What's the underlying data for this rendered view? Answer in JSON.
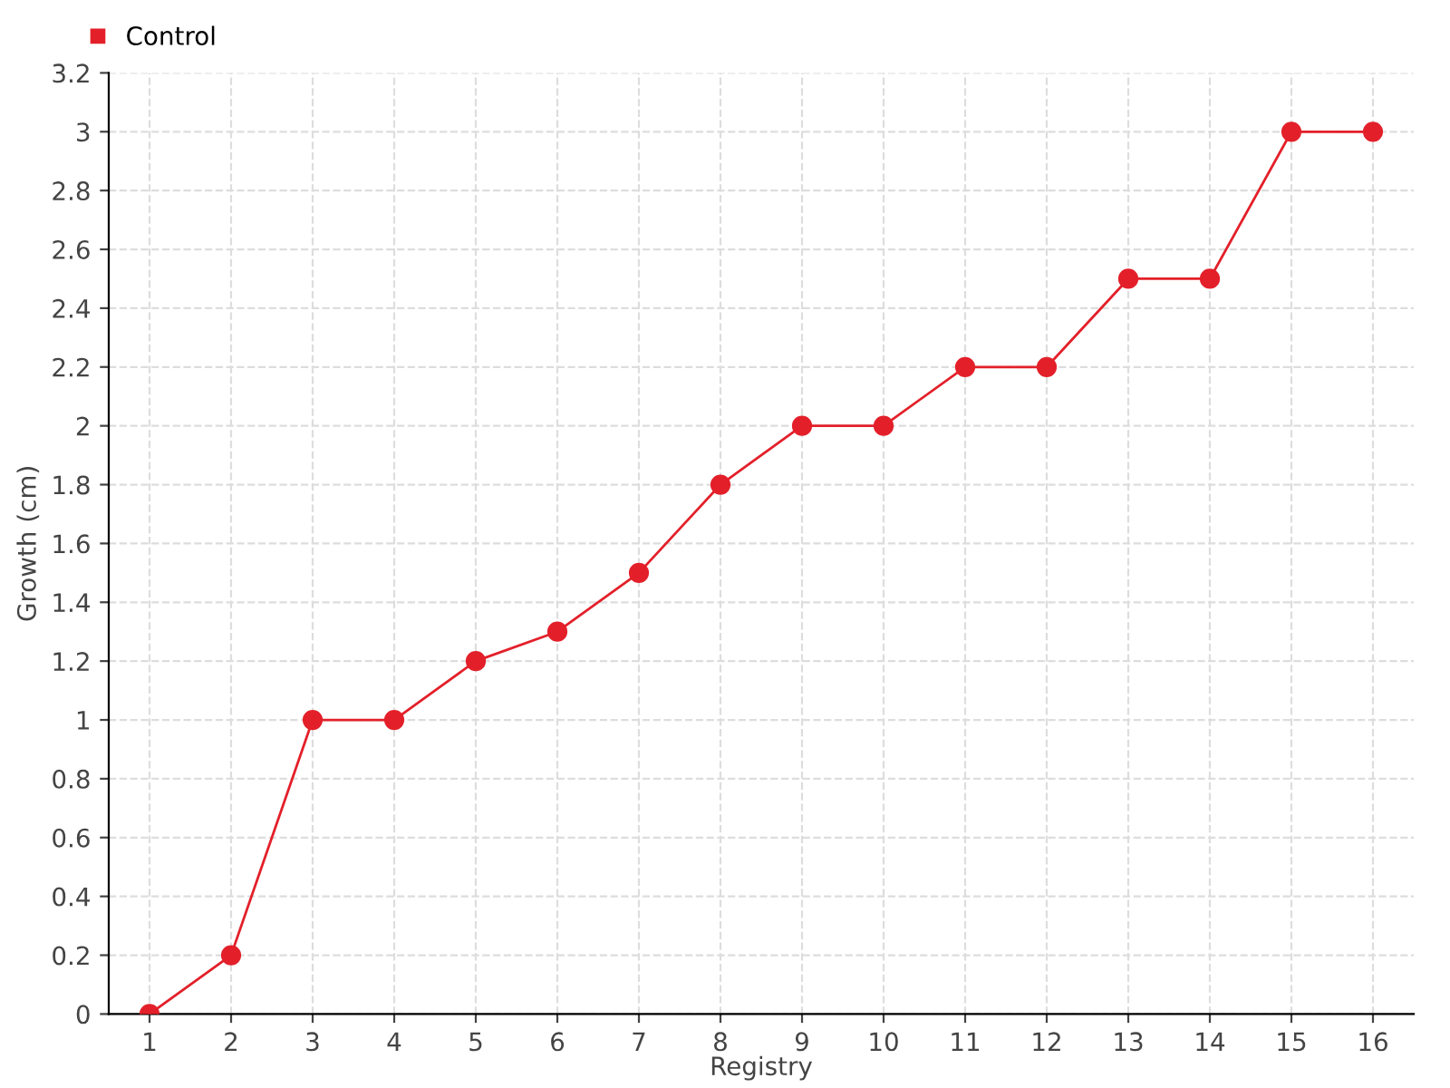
{
  "chart_data": {
    "type": "line",
    "xlabel": "Registry",
    "ylabel": "Growth (cm)",
    "categories": [
      "1",
      "2",
      "3",
      "4",
      "5",
      "6",
      "7",
      "8",
      "9",
      "10",
      "11",
      "12",
      "13",
      "14",
      "15",
      "16"
    ],
    "series": [
      {
        "name": "Control",
        "color": "#e3202a",
        "values": [
          0,
          0.2,
          1,
          1,
          1.2,
          1.3,
          1.5,
          1.8,
          2,
          2,
          2.2,
          2.2,
          2.5,
          2.5,
          3,
          3
        ]
      }
    ],
    "ylim": [
      0,
      3.2
    ],
    "yticks": [
      0,
      0.2,
      0.4,
      0.6,
      0.8,
      1,
      1.2,
      1.4,
      1.6,
      1.8,
      2,
      2.2,
      2.4,
      2.6,
      2.8,
      3,
      3.2
    ],
    "grid": true,
    "legend": "top left",
    "marker": "circle",
    "line_style": "solid"
  }
}
